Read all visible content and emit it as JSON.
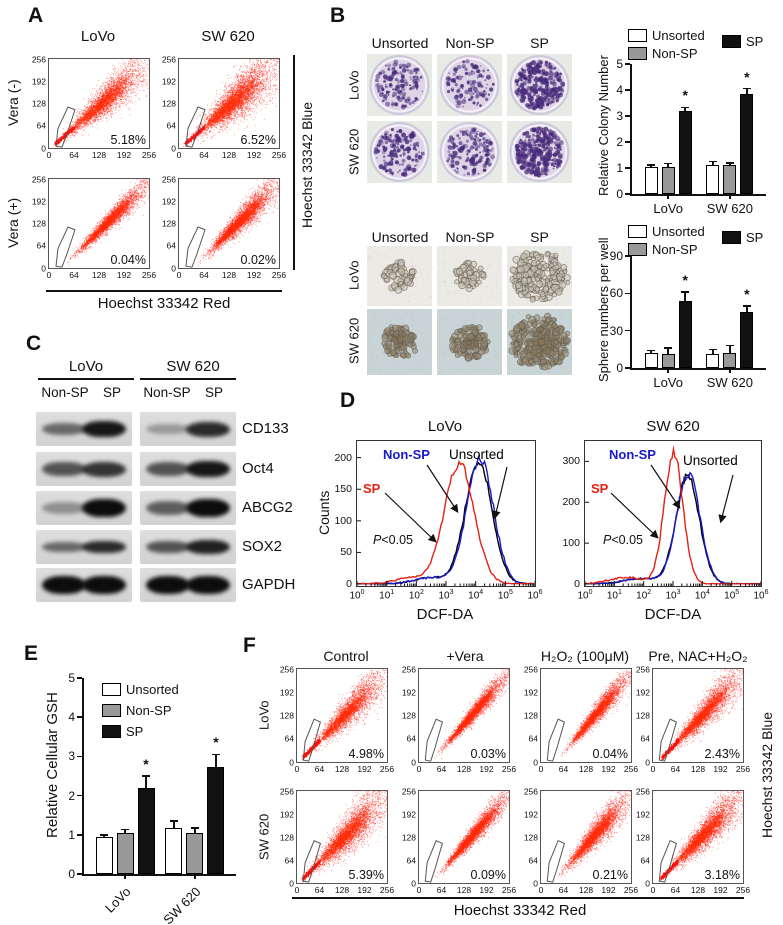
{
  "figure": {
    "panel_a": {
      "label": "A",
      "col_headers": [
        "LoVo",
        "SW 620"
      ],
      "row_labels": [
        "Vera (-)",
        "Vera (+)"
      ],
      "x_label": "Hoechst  33342 Red",
      "right_label": "Hoechst 33342 Blue"
    },
    "panel_b": {
      "label": "B",
      "colony": {
        "col_headers": [
          "Unsorted",
          "Non-SP",
          "SP"
        ],
        "row_labels": [
          "LoVo",
          "SW 620"
        ]
      },
      "sphere": {
        "col_headers": [
          "Unsorted",
          "Non-SP",
          "SP"
        ],
        "row_labels": [
          "LoVo",
          "SW 620"
        ]
      }
    },
    "panel_c": {
      "label": "C",
      "group_headers": [
        "LoVo",
        "SW 620"
      ],
      "lane_labels": [
        "Non-SP",
        "SP",
        "Non-SP",
        "SP"
      ]
    },
    "panel_d": {
      "label": "D",
      "ylabel": "Counts",
      "xlabel": "DCF-DA",
      "annotations": {
        "nonsp": "Non-SP",
        "sp": "SP",
        "unsorted": "Unsorted",
        "p_italic": "P",
        "p_rest": "<0.05"
      }
    },
    "panel_e": {
      "label": "E"
    },
    "panel_f": {
      "label": "F",
      "col_headers": [
        "Control",
        "+Vera",
        "H₂O₂ (100μM)",
        "Pre, NAC+H₂O₂"
      ],
      "row_labels": [
        "LoVo",
        "SW 620"
      ],
      "x_label": "Hoechst  33342 Red",
      "right_label": "Hoechst 33342 Blue"
    }
  },
  "scatter_axis": {
    "ticks": [
      "0",
      "64",
      "128",
      "192",
      "256"
    ]
  },
  "scatter_plots": [
    {
      "name": "lovo-vera-neg",
      "percent": "5.18%",
      "seed": 1,
      "n": 2600,
      "x0": 4,
      "s0": 2,
      "s1": 15,
      "streak": true
    },
    {
      "name": "sw620-vera-neg",
      "percent": "6.52%",
      "seed": 2,
      "n": 3200,
      "x0": 4,
      "s0": 2.5,
      "s1": 19,
      "streak": true
    },
    {
      "name": "lovo-vera-pos",
      "percent": "0.04%",
      "seed": 3,
      "n": 2600,
      "x0": 14,
      "s0": 1.5,
      "s1": 8,
      "streak": false
    },
    {
      "name": "sw620-vera-pos",
      "percent": "0.02%",
      "seed": 4,
      "n": 3000,
      "x0": 16,
      "s0": 2,
      "s1": 10,
      "streak": false
    },
    {
      "name": "lovo-control",
      "percent": "4.98%",
      "seed": 5,
      "n": 2400,
      "x0": 4,
      "s0": 2,
      "s1": 13,
      "streak": true
    },
    {
      "name": "lovo-vera",
      "percent": "0.03%",
      "seed": 6,
      "n": 2600,
      "x0": 15,
      "s0": 1.5,
      "s1": 7,
      "streak": false
    },
    {
      "name": "lovo-h2o2",
      "percent": "0.04%",
      "seed": 7,
      "n": 2400,
      "x0": 18,
      "s0": 1.5,
      "s1": 8,
      "streak": false
    },
    {
      "name": "lovo-nac-h2o2",
      "percent": "2.43%",
      "seed": 8,
      "n": 2600,
      "x0": 8,
      "s0": 2,
      "s1": 12,
      "streak": true
    },
    {
      "name": "sw620-control",
      "percent": "5.39%",
      "seed": 9,
      "n": 2800,
      "x0": 4,
      "s0": 2.5,
      "s1": 16,
      "streak": true
    },
    {
      "name": "sw620-vera",
      "percent": "0.09%",
      "seed": 10,
      "n": 2800,
      "x0": 15,
      "s0": 1.5,
      "s1": 8,
      "streak": false
    },
    {
      "name": "sw620-h2o2",
      "percent": "0.21%",
      "seed": 11,
      "n": 2600,
      "x0": 14,
      "s0": 2,
      "s1": 11,
      "streak": false
    },
    {
      "name": "sw620-nac-h2o2",
      "percent": "3.18%",
      "seed": 12,
      "n": 2800,
      "x0": 6,
      "s0": 2.5,
      "s1": 13,
      "streak": true
    }
  ],
  "chart_data": [
    {
      "id": "colony",
      "type": "bar",
      "ylabel": "Relative Colony Number",
      "ylim": [
        0,
        5
      ],
      "yticks": [
        0,
        1,
        2,
        3,
        4,
        5
      ],
      "categories": [
        "LoVo",
        "SW 620"
      ],
      "series": [
        {
          "name": "Unsorted",
          "fill": "#ffffff",
          "values": [
            1.05,
            1.12
          ],
          "errors": [
            0.06,
            0.13
          ],
          "sig": [
            false,
            false
          ]
        },
        {
          "name": "Non-SP",
          "fill": "#999999",
          "values": [
            1.05,
            1.12
          ],
          "errors": [
            0.13,
            0.07
          ],
          "sig": [
            false,
            false
          ]
        },
        {
          "name": "SP",
          "fill": "#111111",
          "values": [
            3.2,
            3.85
          ],
          "errors": [
            0.13,
            0.2
          ],
          "sig": [
            true,
            true
          ]
        }
      ]
    },
    {
      "id": "sphere",
      "type": "bar",
      "ylabel": "Sphere numbers per well",
      "ylim": [
        0,
        90
      ],
      "yticks": [
        0,
        30,
        60,
        90
      ],
      "categories": [
        "LoVo",
        "SW 620"
      ],
      "series": [
        {
          "name": "Unsorted",
          "fill": "#ffffff",
          "values": [
            12,
            11
          ],
          "errors": [
            2,
            4
          ],
          "sig": [
            false,
            false
          ]
        },
        {
          "name": "Non-SP",
          "fill": "#999999",
          "values": [
            11,
            12
          ],
          "errors": [
            5,
            6
          ],
          "sig": [
            false,
            false
          ]
        },
        {
          "name": "SP",
          "fill": "#111111",
          "values": [
            54,
            45
          ],
          "errors": [
            7,
            5
          ],
          "sig": [
            true,
            true
          ]
        }
      ]
    },
    {
      "id": "gsh",
      "type": "bar",
      "ylabel": "Relative  Cellular GSH",
      "ylim": [
        0,
        5
      ],
      "yticks": [
        0,
        1,
        2,
        3,
        4,
        5
      ],
      "categories": [
        "LoVo",
        "SW 620"
      ],
      "cat_rotate": true,
      "series": [
        {
          "name": "Unsorted",
          "fill": "#ffffff",
          "values": [
            0.95,
            1.18
          ],
          "errors": [
            0.05,
            0.17
          ],
          "sig": [
            false,
            false
          ]
        },
        {
          "name": "Non-SP",
          "fill": "#999999",
          "values": [
            1.05,
            1.05
          ],
          "errors": [
            0.08,
            0.12
          ],
          "sig": [
            false,
            false
          ]
        },
        {
          "name": "SP",
          "fill": "#111111",
          "values": [
            2.2,
            2.72
          ],
          "errors": [
            0.3,
            0.33
          ],
          "sig": [
            true,
            true
          ]
        }
      ]
    },
    {
      "id": "hist_lovo",
      "type": "line",
      "title": "LoVo",
      "xlabel": "DCF-DA",
      "ylabel": "Counts",
      "xscale": "log10",
      "xlim_exp": [
        0,
        6
      ],
      "xticks_exp": [
        0,
        1,
        2,
        3,
        4,
        5,
        6
      ],
      "ylim": [
        0,
        220
      ],
      "yticks": [
        0,
        50,
        100,
        150,
        200
      ],
      "series": [
        {
          "name": "Unsorted",
          "color": "#000000",
          "peak_log10": 4.1,
          "sigma_log10": 0.45,
          "peak_counts": 195
        },
        {
          "name": "Non-SP",
          "color": "#1818cc",
          "peak_log10": 4.15,
          "sigma_log10": 0.45,
          "peak_counts": 200
        },
        {
          "name": "SP",
          "color": "#e82015",
          "peak_log10": 3.45,
          "sigma_log10": 0.5,
          "peak_counts": 190
        }
      ],
      "annotation": "P<0.05"
    },
    {
      "id": "hist_sw620",
      "type": "line",
      "title": "SW 620",
      "xlabel": "DCF-DA",
      "ylabel": "Counts",
      "xscale": "log10",
      "xlim_exp": [
        0,
        6
      ],
      "xticks_exp": [
        0,
        1,
        2,
        3,
        4,
        5,
        6
      ],
      "ylim": [
        0,
        340
      ],
      "yticks": [
        0,
        100,
        200,
        300
      ],
      "series": [
        {
          "name": "Unsorted",
          "color": "#000000",
          "peak_log10": 3.5,
          "sigma_log10": 0.4,
          "peak_counts": 265
        },
        {
          "name": "Non-SP",
          "color": "#1818cc",
          "peak_log10": 3.52,
          "sigma_log10": 0.4,
          "peak_counts": 270
        },
        {
          "name": "SP",
          "color": "#e82015",
          "peak_log10": 3.02,
          "sigma_log10": 0.32,
          "peak_counts": 320
        }
      ],
      "annotation": "P<0.05"
    }
  ],
  "western_blot": {
    "groups": [
      "LoVo",
      "SW 620"
    ],
    "lanes": [
      "Non-SP",
      "SP",
      "Non-SP",
      "SP"
    ],
    "rows": [
      {
        "label": "CD133",
        "intensity": [
          0.55,
          0.95,
          0.3,
          0.85
        ],
        "thickness": [
          0.45,
          0.85,
          0.4,
          0.75
        ]
      },
      {
        "label": "Oct4",
        "intensity": [
          0.65,
          0.8,
          0.65,
          0.95
        ],
        "thickness": [
          0.65,
          0.75,
          0.6,
          0.85
        ]
      },
      {
        "label": "ABCG2",
        "intensity": [
          0.35,
          1.0,
          0.6,
          1.0
        ],
        "thickness": [
          0.5,
          1.0,
          0.6,
          1.0
        ]
      },
      {
        "label": "SOX2",
        "intensity": [
          0.55,
          0.85,
          0.65,
          0.9
        ],
        "thickness": [
          0.4,
          0.55,
          0.5,
          0.65
        ]
      },
      {
        "label": "GAPDH",
        "intensity": [
          1.0,
          1.0,
          1.0,
          1.0
        ],
        "thickness": [
          0.95,
          0.95,
          0.95,
          0.95
        ]
      }
    ]
  },
  "colony_dishes": {
    "densities": [
      [
        130,
        105,
        300
      ],
      [
        140,
        150,
        330
      ]
    ]
  },
  "sphere_images": {
    "bg": [
      "#eceae5",
      "#c9d4d6"
    ],
    "radius": [
      [
        15,
        14,
        27
      ],
      [
        17,
        18,
        28
      ]
    ]
  },
  "colors": {
    "dot_red": "#ff1e12",
    "nonsp_blue": "#1818cc",
    "sp_red": "#e82015",
    "unsorted_black": "#000000"
  }
}
